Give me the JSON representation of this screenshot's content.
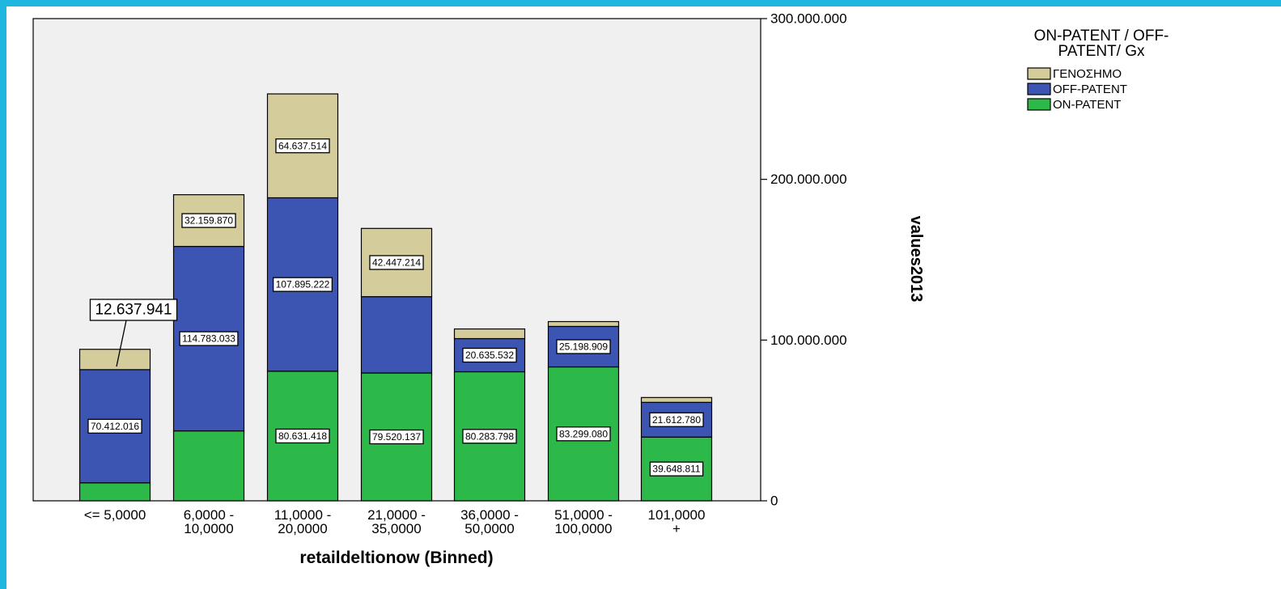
{
  "chart_data": {
    "type": "bar",
    "stacked": true,
    "categories": [
      [
        "<= 5,0000"
      ],
      [
        "6,0000 -",
        "10,0000"
      ],
      [
        "11,0000 -",
        "20,0000"
      ],
      [
        "21,0000 -",
        "35,0000"
      ],
      [
        "36,0000 -",
        "50,0000"
      ],
      [
        "51,0000 -",
        "100,0000"
      ],
      [
        "101,0000",
        "+"
      ]
    ],
    "series": [
      {
        "name": "ON-PATENT",
        "color": "#2db84a",
        "values": [
          11200000,
          43500000,
          80631418,
          79520137,
          80283798,
          83299080,
          39648811
        ],
        "labels": [
          "",
          "",
          "80.631.418",
          "79.520.137",
          "80.283.798",
          "83.299.080",
          "39.648.811"
        ]
      },
      {
        "name": "OFF-PATENT",
        "color": "#3c55b3",
        "values": [
          70412016,
          114783033,
          107895222,
          47500000,
          20635532,
          25198909,
          21612780
        ],
        "labels": [
          "70.412.016",
          "114.783.033",
          "107.895.222",
          "",
          "20.635.532",
          "25.198.909",
          "21.612.780"
        ]
      },
      {
        "name": "ΓΕΝΟΣΗΜΟ",
        "color": "#d4cc9b",
        "values": [
          12637941,
          32159870,
          64637514,
          42447214,
          6000000,
          3000000,
          3000000
        ],
        "labels": [
          "12.637.941",
          "32.159.870",
          "64.637.514",
          "42.447.214",
          "",
          "",
          ""
        ]
      }
    ],
    "legend_order": [
      "ΓΕΝΟΣΗΜΟ",
      "OFF-PATENT",
      "ON-PATENT"
    ],
    "legend_title": [
      "ON-PATENT / OFF-",
      "PATENT/ Gx"
    ],
    "legend_position": "top-right",
    "xlabel": "retaildeltionow (Binned)",
    "ylabel": "values2013",
    "ylim": [
      0,
      300000000
    ],
    "yticks": [
      0,
      100000000,
      200000000,
      300000000
    ],
    "ytick_labels": [
      "0",
      "100.000.000",
      "200.000.000",
      "300.000.000"
    ],
    "y_axis_side": "right",
    "grid": false,
    "plot_background": "#f0f0f0",
    "page_background": "#1fb6e0"
  }
}
